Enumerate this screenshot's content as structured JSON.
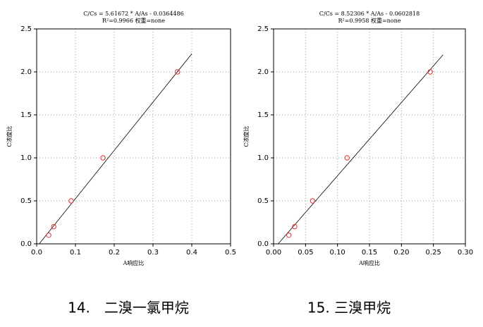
{
  "chart_data": [
    {
      "type": "scatter",
      "title": "C/Cs = 5.61672 * A/As - 0.0364486",
      "subtitle": "R²=0.9966 权重=none",
      "x_label": "A响应比",
      "y_label": "C浓度比",
      "caption": "14.　二溴一氯甲烷",
      "x": [
        0.031,
        0.044,
        0.089,
        0.171,
        0.363
      ],
      "series": [
        {
          "color": "#e03030",
          "values": [
            0.1,
            0.2,
            0.5,
            1.0,
            2.0
          ]
        }
      ],
      "fit_line": {
        "color": "#000000",
        "x": [
          0.0065,
          0.4
        ],
        "values": [
          0,
          2.21
        ]
      },
      "xlim": [
        0,
        0.5
      ],
      "ylim": [
        0,
        2.5
      ],
      "xticks": [
        {
          "value": 0,
          "label": "0.0"
        },
        0.1,
        0.2,
        0.3,
        0.4,
        0.5
      ],
      "yticks": [
        {
          "value": 0,
          "label": "0.0"
        },
        0.5,
        {
          "value": 1,
          "label": "1.0"
        },
        1.5,
        {
          "value": 2,
          "label": "2.0"
        },
        2.5
      ],
      "grid": true
    },
    {
      "type": "scatter",
      "title": "C/Cs = 8.52306 * A/As - 0.0602818",
      "subtitle": "R²=0.9958 权重=none",
      "x_label": "A响应比",
      "y_label": "C浓度比",
      "caption": "15. 三溴甲烷",
      "x": [
        0.024,
        0.033,
        0.061,
        0.115,
        0.245
      ],
      "series": [
        {
          "color": "#e03030",
          "values": [
            0.1,
            0.2,
            0.5,
            1.0,
            2.0
          ]
        }
      ],
      "fit_line": {
        "color": "#000000",
        "x": [
          0.0071,
          0.265
        ],
        "values": [
          0,
          2.198
        ]
      },
      "xlim": [
        0,
        0.3
      ],
      "ylim": [
        0,
        2.5
      ],
      "xticks": [
        {
          "value": 0,
          "label": "0.00"
        },
        0.05,
        {
          "value": 0.1,
          "label": "0.10"
        },
        0.15,
        {
          "value": 0.2,
          "label": "0.20"
        },
        0.25,
        {
          "value": 0.3,
          "label": "0.30"
        }
      ],
      "yticks": [
        {
          "value": 0,
          "label": "0.0"
        },
        0.5,
        {
          "value": 1,
          "label": "1.0"
        },
        1.5,
        {
          "value": 2,
          "label": "2.0"
        },
        2.5
      ],
      "grid": true
    }
  ]
}
